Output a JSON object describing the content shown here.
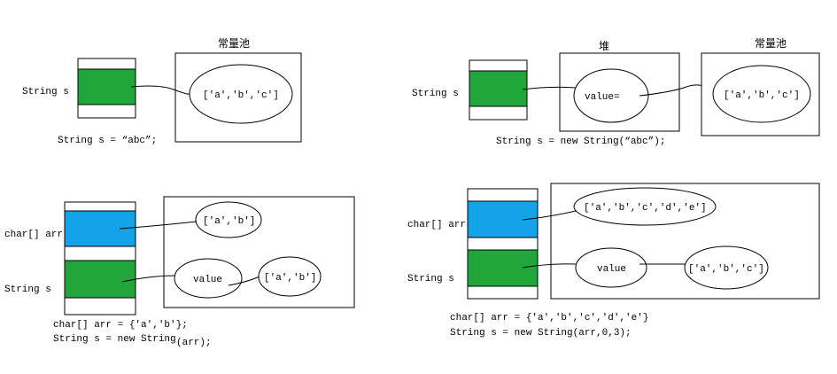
{
  "diagrams": {
    "literal": {
      "var_label": "String s",
      "pool_title": "常量池",
      "pool_value": "['a','b','c']",
      "code": "String s = “abc”;"
    },
    "new_string": {
      "var_label": "String s",
      "heap_title": "堆",
      "heap_value": "value=",
      "pool_title": "常量池",
      "pool_value": "['a','b','c']",
      "code": "String s = new String(“abc”);"
    },
    "char_array": {
      "arr_label": "char[] arr",
      "var_label": "String s",
      "arr_value": "['a','b']",
      "value_label": "value",
      "copy_value": "['a','b']",
      "code_line1": "char[] arr = {'a','b'};",
      "code_line2_a": "String s = new String",
      "code_line2_b": "(arr);"
    },
    "char_array_range": {
      "arr_label": "char[] arr",
      "var_label": "String s",
      "arr_value": "['a','b','c','d','e']",
      "value_label": "value",
      "copy_value": "['a','b','c']",
      "code_line1": "char[] arr = {'a','b','c','d','e'}",
      "code_line2": "String s = new String(arr,0,3);"
    }
  },
  "colors": {
    "stack_green": "#21a63c",
    "stack_blue": "#14a3e8",
    "stroke": "#000000"
  }
}
